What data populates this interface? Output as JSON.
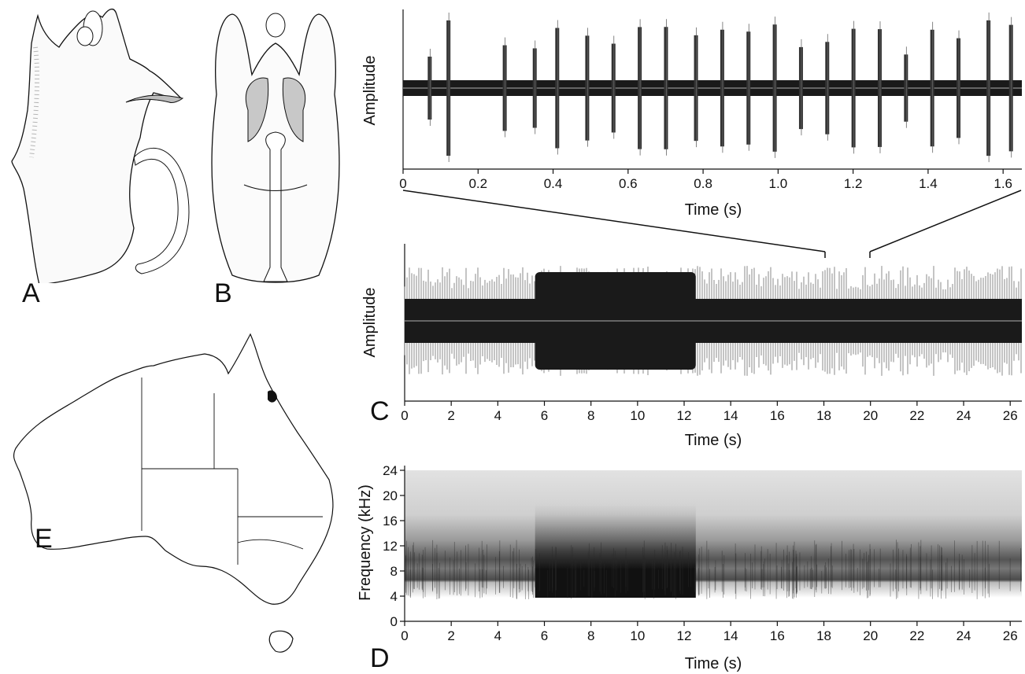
{
  "panel_labels": {
    "a": "A",
    "b": "B",
    "c": "C",
    "d": "D",
    "e": "E"
  },
  "colors": {
    "ink": "#111111",
    "waveform": "#1a1a1a",
    "spectro_dark": "#101010",
    "spectro_mid": "#6a6a6a",
    "spectro_light": "#d8d8d8",
    "midline": "#b0b0b0"
  },
  "chart_data": [
    {
      "id": "waveform-detail",
      "type": "line",
      "xlabel": "Time (s)",
      "ylabel": "Amplitude",
      "xlim": [
        0,
        1.65
      ],
      "xticks": [
        "0",
        "0.2",
        "0.4",
        "0.6",
        "0.8",
        "1.0",
        "1.2",
        "1.4",
        "1.6"
      ],
      "pulse_times": [
        0.07,
        0.12,
        0.27,
        0.35,
        0.41,
        0.49,
        0.56,
        0.63,
        0.7,
        0.78,
        0.85,
        0.92,
        0.99,
        1.06,
        1.13,
        1.2,
        1.27,
        1.34,
        1.41,
        1.48,
        1.56,
        1.62
      ],
      "zoom_from_main": [
        18,
        19.9
      ]
    },
    {
      "id": "waveform-main",
      "type": "line",
      "xlabel": "Time (s)",
      "ylabel": "Amplitude",
      "xlim": [
        0,
        26.5
      ],
      "xticks": [
        "0",
        "2",
        "4",
        "6",
        "8",
        "10",
        "12",
        "14",
        "16",
        "18",
        "20",
        "22",
        "24",
        "26"
      ],
      "continuous_segment": [
        5.6,
        12.5
      ]
    },
    {
      "id": "spectrogram",
      "type": "heatmap",
      "xlabel": "Time (s)",
      "ylabel": "Frequency (kHz)",
      "xlim": [
        0,
        26.5
      ],
      "ylim": [
        0,
        24
      ],
      "xticks": [
        "0",
        "2",
        "4",
        "6",
        "8",
        "10",
        "12",
        "14",
        "16",
        "18",
        "20",
        "22",
        "24",
        "26"
      ],
      "yticks": [
        "0",
        "4",
        "8",
        "12",
        "16",
        "20",
        "24"
      ],
      "continuous_segment": [
        5.6,
        12.5
      ],
      "dominant_band_khz": [
        3.5,
        7.5
      ]
    }
  ]
}
